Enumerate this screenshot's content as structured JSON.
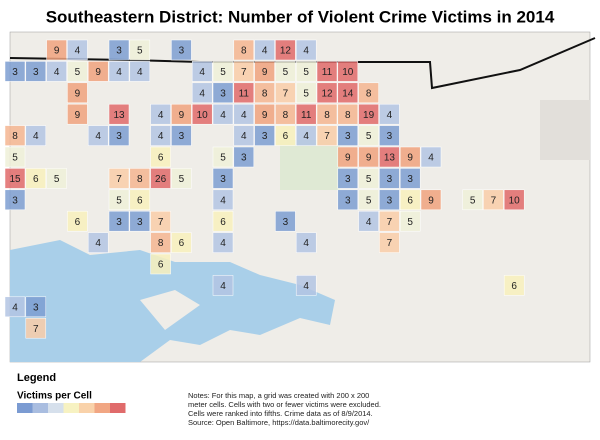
{
  "title": "Southeastern District: Number of Violent Crime Victims in 2014",
  "cells": [
    {
      "value": 9,
      "color": "#f0a27e"
    },
    {
      "value": 4,
      "color": "#b3c4e3"
    },
    {
      "value": 3,
      "color": "#7d9dd1"
    },
    {
      "value": 5,
      "color": "#eef0d8"
    },
    {
      "value": 3,
      "color": "#7d9dd1"
    },
    {
      "value": 8,
      "color": "#f5b590"
    },
    {
      "value": 4,
      "color": "#b3c4e3"
    },
    {
      "value": 12,
      "color": "#e06a6a"
    },
    {
      "value": 4,
      "color": "#b3c4e3"
    },
    {
      "value": 3,
      "color": "#7d9dd1"
    },
    {
      "value": 3,
      "color": "#7d9dd1"
    },
    {
      "value": 4,
      "color": "#b3c4e3"
    },
    {
      "value": 5,
      "color": "#eef0d8"
    },
    {
      "value": 9,
      "color": "#f0a27e"
    },
    {
      "value": 4,
      "color": "#b3c4e3"
    },
    {
      "value": 4,
      "color": "#b3c4e3"
    },
    {
      "value": 4,
      "color": "#b3c4e3"
    },
    {
      "value": 5,
      "color": "#eef0d8"
    },
    {
      "value": 7,
      "color": "#f9cda8"
    },
    {
      "value": 9,
      "color": "#f0a27e"
    },
    {
      "value": 5,
      "color": "#eef0d8"
    },
    {
      "value": 5,
      "color": "#eef0d8"
    },
    {
      "value": 11,
      "color": "#e06a6a"
    },
    {
      "value": 10,
      "color": "#e06a6a"
    },
    {
      "value": 9,
      "color": "#f0a27e"
    },
    {
      "value": 4,
      "color": "#b3c4e3"
    },
    {
      "value": 3,
      "color": "#7d9dd1"
    },
    {
      "value": 11,
      "color": "#e06a6a"
    },
    {
      "value": 8,
      "color": "#f5b590"
    },
    {
      "value": 7,
      "color": "#f9cda8"
    },
    {
      "value": 5,
      "color": "#eef0d8"
    },
    {
      "value": 12,
      "color": "#e06a6a"
    },
    {
      "value": 14,
      "color": "#e06a6a"
    },
    {
      "value": 8,
      "color": "#f5b590"
    },
    {
      "value": 9,
      "color": "#f0a27e"
    },
    {
      "value": 13,
      "color": "#e06a6a"
    },
    {
      "value": 4,
      "color": "#b3c4e3"
    },
    {
      "value": 9,
      "color": "#f0a27e"
    },
    {
      "value": 10,
      "color": "#e06a6a"
    },
    {
      "value": 4,
      "color": "#b3c4e3"
    },
    {
      "value": 4,
      "color": "#b3c4e3"
    },
    {
      "value": 9,
      "color": "#f0a27e"
    },
    {
      "value": 8,
      "color": "#f5b590"
    },
    {
      "value": 11,
      "color": "#e06a6a"
    },
    {
      "value": 8,
      "color": "#f5b590"
    },
    {
      "value": 8,
      "color": "#f5b590"
    },
    {
      "value": 19,
      "color": "#e06a6a"
    },
    {
      "value": 4,
      "color": "#b3c4e3"
    },
    {
      "value": 8,
      "color": "#f5b590"
    },
    {
      "value": 4,
      "color": "#b3c4e3"
    },
    {
      "value": 4,
      "color": "#b3c4e3"
    },
    {
      "value": 3,
      "color": "#7d9dd1"
    },
    {
      "value": 4,
      "color": "#b3c4e3"
    },
    {
      "value": 3,
      "color": "#7d9dd1"
    },
    {
      "value": 4,
      "color": "#b3c4e3"
    },
    {
      "value": 3,
      "color": "#7d9dd1"
    },
    {
      "value": 6,
      "color": "#f8f0bc"
    },
    {
      "value": 4,
      "color": "#b3c4e3"
    },
    {
      "value": 7,
      "color": "#f9cda8"
    },
    {
      "value": 3,
      "color": "#7d9dd1"
    },
    {
      "value": 5,
      "color": "#eef0d8"
    },
    {
      "value": 3,
      "color": "#7d9dd1"
    },
    {
      "value": 5,
      "color": "#eef0d8"
    },
    {
      "value": 6,
      "color": "#f8f0bc"
    },
    {
      "value": 5,
      "color": "#eef0d8"
    },
    {
      "value": 3,
      "color": "#7d9dd1"
    },
    {
      "value": 9,
      "color": "#f0a27e"
    },
    {
      "value": 9,
      "color": "#f0a27e"
    },
    {
      "value": 13,
      "color": "#e06a6a"
    },
    {
      "value": 9,
      "color": "#f0a27e"
    },
    {
      "value": 4,
      "color": "#b3c4e3"
    },
    {
      "value": 15,
      "color": "#e06a6a"
    },
    {
      "value": 6,
      "color": "#f8f0bc"
    },
    {
      "value": 5,
      "color": "#eef0d8"
    },
    {
      "value": 7,
      "color": "#f9cda8"
    },
    {
      "value": 8,
      "color": "#f5b590"
    },
    {
      "value": 26,
      "color": "#e06a6a"
    },
    {
      "value": 5,
      "color": "#eef0d8"
    },
    {
      "value": 3,
      "color": "#7d9dd1"
    },
    {
      "value": 3,
      "color": "#7d9dd1"
    },
    {
      "value": 5,
      "color": "#eef0d8"
    },
    {
      "value": 3,
      "color": "#7d9dd1"
    },
    {
      "value": 3,
      "color": "#7d9dd1"
    },
    {
      "value": 3,
      "color": "#7d9dd1"
    },
    {
      "value": 5,
      "color": "#eef0d8"
    },
    {
      "value": 6,
      "color": "#f8f0bc"
    },
    {
      "value": 4,
      "color": "#b3c4e3"
    },
    {
      "value": 3,
      "color": "#7d9dd1"
    },
    {
      "value": 5,
      "color": "#eef0d8"
    },
    {
      "value": 3,
      "color": "#7d9dd1"
    },
    {
      "value": 6,
      "color": "#f8f0bc"
    },
    {
      "value": 9,
      "color": "#f0a27e"
    },
    {
      "value": 5,
      "color": "#eef0d8"
    },
    {
      "value": 7,
      "color": "#f9cda8"
    },
    {
      "value": 10,
      "color": "#e06a6a"
    },
    {
      "value": 6,
      "color": "#f8f0bc"
    },
    {
      "value": 3,
      "color": "#7d9dd1"
    },
    {
      "value": 3,
      "color": "#7d9dd1"
    },
    {
      "value": 7,
      "color": "#f9cda8"
    },
    {
      "value": 6,
      "color": "#f8f0bc"
    },
    {
      "value": 3,
      "color": "#7d9dd1"
    },
    {
      "value": 4,
      "color": "#b3c4e3"
    },
    {
      "value": 7,
      "color": "#f9cda8"
    },
    {
      "value": 5,
      "color": "#eef0d8"
    },
    {
      "value": 4,
      "color": "#b3c4e3"
    },
    {
      "value": 8,
      "color": "#f5b590"
    },
    {
      "value": 6,
      "color": "#f8f0bc"
    },
    {
      "value": 4,
      "color": "#b3c4e3"
    },
    {
      "value": 4,
      "color": "#b3c4e3"
    },
    {
      "value": 7,
      "color": "#f9cda8"
    },
    {
      "value": 6,
      "color": "#f8f0bc"
    },
    {
      "value": 4,
      "color": "#b3c4e3"
    },
    {
      "value": 4,
      "color": "#b3c4e3"
    },
    {
      "value": 6,
      "color": "#f8f0bc"
    },
    {
      "value": 4,
      "color": "#b3c4e3"
    },
    {
      "value": 3,
      "color": "#7d9dd1"
    },
    {
      "value": 7,
      "color": "#f9cda8"
    }
  ],
  "legend": {
    "title": "Legend",
    "label": "Victims per Cell",
    "colors": [
      "#7b9bd2",
      "#a9bde0",
      "#d6e0ec",
      "#f7f2c2",
      "#f9d2aa",
      "#f1a683",
      "#e06b6b"
    ]
  },
  "notes": [
    "Notes: For this map, a grid was created with 200 x 200",
    "meter cells.  Cells with two or fewer victims were excluded.",
    "Cells were ranked into fifths. Crime data as of 8/9/2014.",
    "Source: Open Baltimore, https://data.baltimorecity.gov/"
  ]
}
